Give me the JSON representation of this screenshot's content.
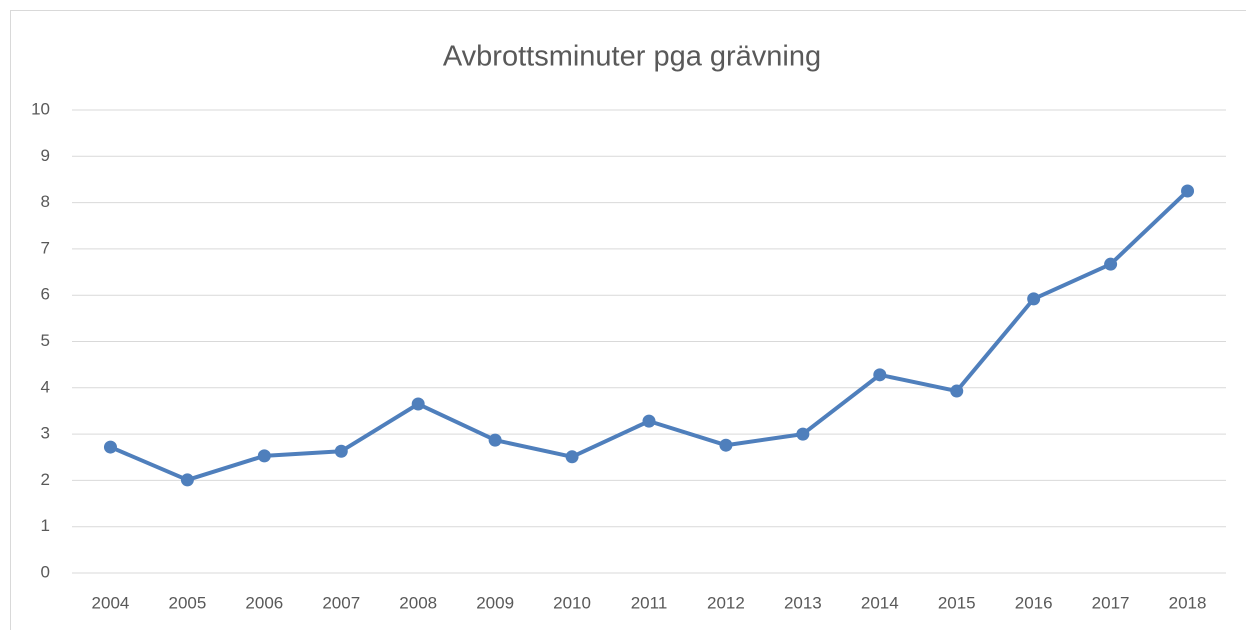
{
  "chart_data": {
    "type": "line",
    "title": "Avbrottsminuter pga grävning",
    "categories": [
      "2004",
      "2005",
      "2006",
      "2007",
      "2008",
      "2009",
      "2010",
      "2011",
      "2012",
      "2013",
      "2014",
      "2015",
      "2016",
      "2017",
      "2018"
    ],
    "values": [
      2.72,
      2.01,
      2.53,
      2.63,
      3.65,
      2.87,
      2.51,
      3.28,
      2.76,
      3.0,
      4.28,
      3.93,
      5.92,
      6.67,
      8.25
    ],
    "color": "#4f7fbc",
    "ylim": [
      0,
      10
    ],
    "yticks": [
      0,
      1,
      2,
      3,
      4,
      5,
      6,
      7,
      8,
      9,
      10
    ],
    "grid": true
  }
}
